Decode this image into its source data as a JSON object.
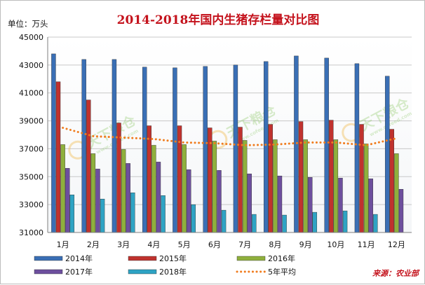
{
  "chart_data": {
    "type": "bar",
    "title": "2014-2018年国内生猪存栏量对比图",
    "unit_label": "单位：万头",
    "source": "来源：农业部",
    "categories": [
      "1月",
      "2月",
      "3月",
      "4月",
      "5月",
      "6月",
      "7月",
      "8月",
      "9月",
      "10月",
      "11月",
      "12月"
    ],
    "ylim": [
      31000,
      45000
    ],
    "yticks": [
      "31000",
      "33000",
      "35000",
      "37000",
      "39000",
      "41000",
      "43000",
      "45000"
    ],
    "grid": true,
    "legend_position": "bottom",
    "series": [
      {
        "name": "2014年",
        "color": "#3a6fb5",
        "values": [
          43800,
          43400,
          43400,
          42850,
          42800,
          42900,
          43000,
          43250,
          43650,
          43500,
          43100,
          42200
        ]
      },
      {
        "name": "2015年",
        "color": "#c0322e",
        "values": [
          41800,
          40500,
          38850,
          38650,
          38650,
          38500,
          38550,
          38750,
          38950,
          39050,
          38750,
          38400
        ]
      },
      {
        "name": "2016年",
        "color": "#8fb03c",
        "values": [
          37300,
          36650,
          36950,
          37250,
          37300,
          37550,
          37600,
          37650,
          37650,
          37650,
          37350,
          36650
        ]
      },
      {
        "name": "2017年",
        "color": "#6d4f9e",
        "values": [
          35600,
          35550,
          35950,
          36050,
          35500,
          35450,
          35200,
          35050,
          34950,
          34900,
          34850,
          34100
        ]
      },
      {
        "name": "2018年",
        "color": "#2ea3c4",
        "values": [
          33700,
          33400,
          33850,
          33650,
          33000,
          32600,
          32300,
          32250,
          32450,
          32550,
          32300,
          null
        ]
      },
      {
        "name": "5年平均",
        "color": "#f07c1e",
        "type": "line",
        "style": "dotted",
        "values": [
          38500,
          37900,
          37800,
          37700,
          37450,
          37400,
          37250,
          37300,
          37450,
          37450,
          37250,
          37750
        ]
      }
    ]
  },
  "watermark": {
    "text": "天下粮仓",
    "url": "www.cofeed.com"
  }
}
